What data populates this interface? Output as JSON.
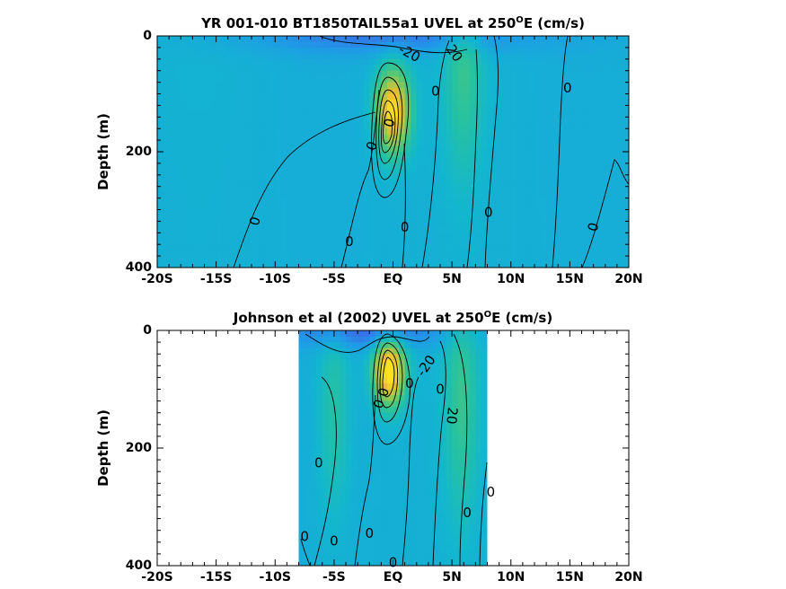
{
  "chart_data": [
    {
      "type": "heatmap",
      "title": "YR 001-010 BT1850TAIL55a1 UVEL at 250",
      "title_sup": "O",
      "title_suffix": "E (cm/s)",
      "xlabel": "",
      "ylabel": "Depth (m)",
      "xlim": [
        -20,
        20
      ],
      "ylim": [
        400,
        0
      ],
      "xticklabels": [
        "-20S",
        "-15S",
        "-10S",
        "-5S",
        "EQ",
        "5N",
        "10N",
        "15N",
        "20N"
      ],
      "yticklabels": [
        "0",
        "200",
        "400"
      ],
      "data_extent_lat": [
        -20,
        20
      ],
      "colormap": [
        "#3a6ee8",
        "#1f9be6",
        "#12b6cf",
        "#27c29f",
        "#5fc86e",
        "#a9c848",
        "#f1b934",
        "#f8e41c"
      ],
      "features": [
        {
          "kind": "jet",
          "lat": 0,
          "depth": 130,
          "lat_width": 1.4,
          "depth_width": 70,
          "peak_cms": 90
        },
        {
          "kind": "jet",
          "lat": 6,
          "depth": 60,
          "lat_width": 1.6,
          "depth_width": 180,
          "peak_cms": 25
        },
        {
          "kind": "surface_westward",
          "lat": 0,
          "depth": 0,
          "lat_width": 12,
          "depth_width": 30,
          "peak_cms": -25
        }
      ],
      "contour_labels": [
        {
          "text": "-20",
          "lat": 1.4,
          "depth": 30,
          "rot": 28
        },
        {
          "text": "20",
          "lat": 5.2,
          "depth": 30,
          "rot": 55
        },
        {
          "text": "0",
          "lat": 3.6,
          "depth": 95,
          "rot": 0
        },
        {
          "text": "0",
          "lat": 14.8,
          "depth": 90,
          "rot": 0
        },
        {
          "text": "0",
          "lat": -0.3,
          "depth": 150,
          "rot": -75
        },
        {
          "text": "0",
          "lat": -1.8,
          "depth": 190,
          "rot": -70
        },
        {
          "text": "0",
          "lat": -11.7,
          "depth": 320,
          "rot": -75
        },
        {
          "text": "0",
          "lat": -3.7,
          "depth": 355,
          "rot": 0
        },
        {
          "text": "0",
          "lat": 1.0,
          "depth": 330,
          "rot": 0
        },
        {
          "text": "0",
          "lat": 8.1,
          "depth": 305,
          "rot": 0
        },
        {
          "text": "0",
          "lat": 17.0,
          "depth": 330,
          "rot": -75
        }
      ]
    },
    {
      "type": "heatmap",
      "title": "Johnson et al (2002) UVEL at 250",
      "title_sup": "O",
      "title_suffix": "E (cm/s)",
      "xlabel": "",
      "ylabel": "Depth (m)",
      "xlim": [
        -20,
        20
      ],
      "ylim": [
        400,
        0
      ],
      "xticklabels": [
        "-20S",
        "-15S",
        "-10S",
        "-5S",
        "EQ",
        "5N",
        "10N",
        "15N",
        "20N"
      ],
      "yticklabels": [
        "0",
        "200",
        "400"
      ],
      "data_extent_lat": [
        -8,
        8
      ],
      "colormap": [
        "#3a6ee8",
        "#1f9be6",
        "#12b6cf",
        "#27c29f",
        "#5fc86e",
        "#a9c848",
        "#f1b934",
        "#f8e41c"
      ],
      "features": [
        {
          "kind": "jet",
          "lat": -0.3,
          "depth": 70,
          "lat_width": 1.3,
          "depth_width": 55,
          "peak_cms": 100
        },
        {
          "kind": "jet",
          "lat": 5.8,
          "depth": 120,
          "lat_width": 1.4,
          "depth_width": 200,
          "peak_cms": 25
        },
        {
          "kind": "jet",
          "lat": -5.0,
          "depth": 130,
          "lat_width": 1.3,
          "depth_width": 180,
          "peak_cms": 20
        },
        {
          "kind": "surface_westward",
          "lat": -2,
          "depth": 0,
          "lat_width": 7,
          "depth_width": 30,
          "peak_cms": -30
        }
      ],
      "contour_labels": [
        {
          "text": "-20",
          "lat": 2.8,
          "depth": 60,
          "rot": -55
        },
        {
          "text": "20",
          "lat": 5.0,
          "depth": 145,
          "rot": 95
        },
        {
          "text": "0",
          "lat": 1.4,
          "depth": 90,
          "rot": 0
        },
        {
          "text": "0",
          "lat": 4.0,
          "depth": 100,
          "rot": 0
        },
        {
          "text": "0",
          "lat": -0.8,
          "depth": 105,
          "rot": -75
        },
        {
          "text": "0",
          "lat": -1.2,
          "depth": 125,
          "rot": -70
        },
        {
          "text": "0",
          "lat": -6.3,
          "depth": 225,
          "rot": 0
        },
        {
          "text": "0",
          "lat": 8.3,
          "depth": 275,
          "rot": 0
        },
        {
          "text": "0",
          "lat": 6.3,
          "depth": 310,
          "rot": 0
        },
        {
          "text": "0",
          "lat": -7.5,
          "depth": 350,
          "rot": 0
        },
        {
          "text": "0",
          "lat": -5.0,
          "depth": 358,
          "rot": 0
        },
        {
          "text": "0",
          "lat": -2.0,
          "depth": 345,
          "rot": 0
        },
        {
          "text": "0",
          "lat": 0.0,
          "depth": 395,
          "rot": 0
        }
      ]
    }
  ]
}
